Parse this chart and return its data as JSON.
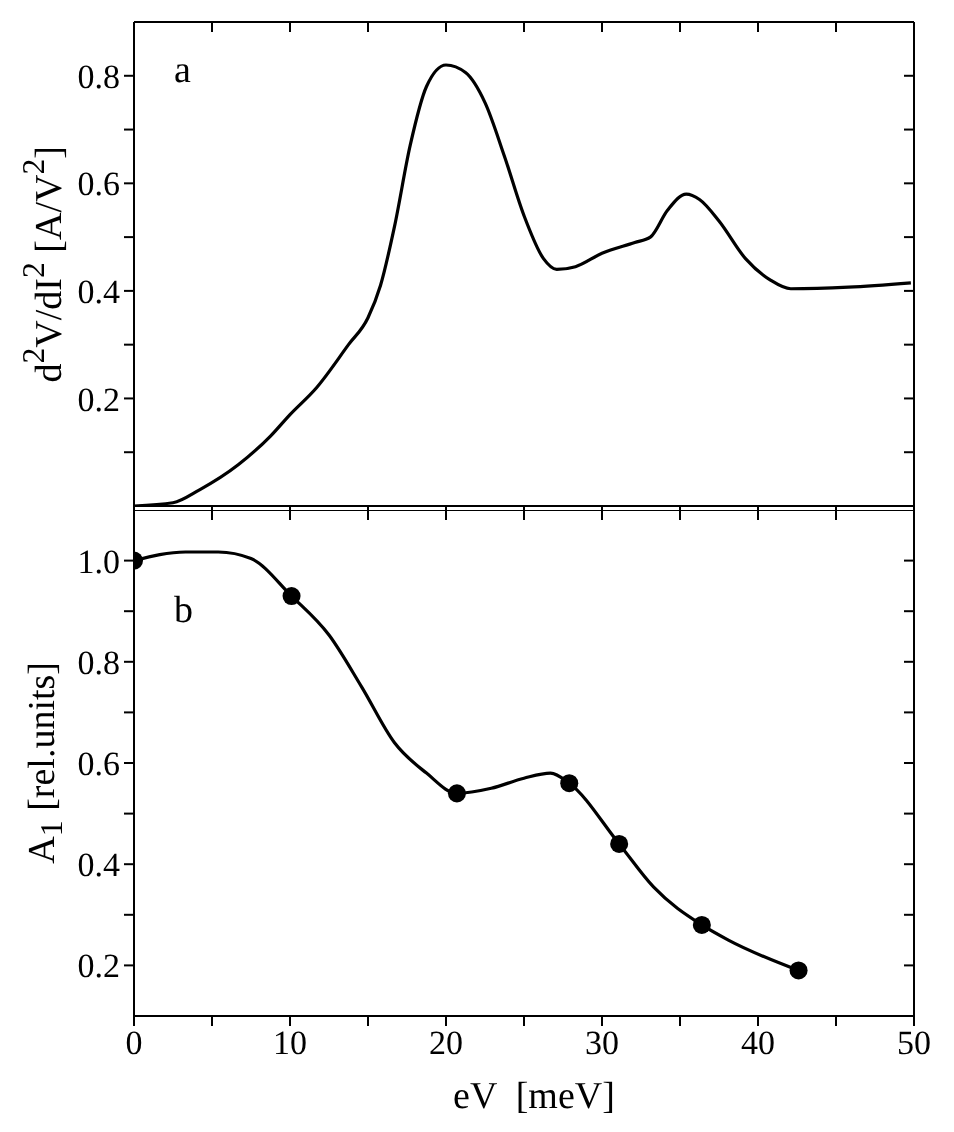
{
  "chart_data": [
    {
      "type": "line",
      "xlim": [
        0,
        50
      ],
      "xticks": [
        0,
        {
          "value": 5,
          "label": null
        },
        10,
        {
          "value": 15,
          "label": null
        },
        20,
        {
          "value": 25,
          "label": null
        },
        30,
        {
          "value": 35,
          "label": null
        },
        40,
        {
          "value": 45,
          "label": null
        },
        50
      ],
      "ylim": [
        0,
        0.9
      ],
      "yticks": [
        {
          "value": 0.1,
          "label": null
        },
        0.2,
        {
          "value": 0.3,
          "label": null
        },
        0.4,
        {
          "value": 0.5,
          "label": null
        },
        0.6,
        {
          "value": 0.7,
          "label": null
        },
        0.8
      ],
      "ylabel": "d$^{2}$V/dI$^{2}$ [A/V$^{2}$]",
      "tick_labels": "y",
      "annotations": [
        "a"
      ],
      "marker": "none",
      "line_style": "solid",
      "series": [
        {
          "color": "#000000",
          "x": [
            0,
            2.5,
            4.2,
            6.7,
            8.75,
            10,
            11.7,
            13.75,
            15,
            15.8,
            16.7,
            17.7,
            18.75,
            20,
            21.25,
            22.5,
            23.75,
            25,
            26.25,
            27.1,
            28.3,
            30,
            32.1,
            33.1,
            34.2,
            35.4,
            36.25,
            37.5,
            39.2,
            40.8,
            42.1,
            45.8,
            49.8
          ],
          "values": [
            0,
            0.006,
            0.03,
            0.077,
            0.13,
            0.17,
            0.22,
            0.3,
            0.35,
            0.41,
            0.52,
            0.67,
            0.78,
            0.82,
            0.806,
            0.75,
            0.65,
            0.54,
            0.46,
            0.44,
            0.445,
            0.47,
            0.49,
            0.5,
            0.55,
            0.58,
            0.57,
            0.53,
            0.46,
            0.42,
            0.404,
            0.407,
            0.415
          ]
        }
      ]
    },
    {
      "type": "line",
      "xlim": [
        0,
        50
      ],
      "xticks": [
        0,
        {
          "value": 5,
          "label": null
        },
        10,
        {
          "value": 15,
          "label": null
        },
        20,
        {
          "value": 25,
          "label": null
        },
        30,
        {
          "value": 35,
          "label": null
        },
        40,
        {
          "value": 45,
          "label": null
        },
        50
      ],
      "ylim": [
        0.1,
        1.1
      ],
      "yticks": [
        0.2,
        {
          "value": 0.3,
          "label": null
        },
        0.4,
        {
          "value": 0.5,
          "label": null
        },
        0.6,
        {
          "value": 0.7,
          "label": null
        },
        0.8,
        {
          "value": 0.9,
          "label": null
        },
        {
          "value": 1.0,
          "label": "1.0"
        }
      ],
      "xlabel": "eV  [meV]",
      "ylabel": "A$_{1}$ [rel.units]",
      "annotations": [
        "b"
      ],
      "line_style": "solid",
      "series": [
        {
          "marker": "none",
          "color": "#000000",
          "x": [
            0,
            3.3,
            5.4,
            7.5,
            10.1,
            12.5,
            14.6,
            16.7,
            18.75,
            20.7,
            22.9,
            25,
            26.7,
            27.9,
            31.1,
            33.3,
            36.4,
            38.1,
            42.6
          ],
          "values": [
            1.0,
            1.017,
            1.017,
            1.004,
            0.93,
            0.853,
            0.75,
            0.64,
            0.58,
            0.54,
            0.55,
            0.57,
            0.58,
            0.56,
            0.44,
            0.355,
            0.28,
            0.25,
            0.19
          ]
        },
        {
          "type": "scatter",
          "marker": "circle",
          "color": "#000000",
          "x": [
            0,
            10.1,
            20.7,
            27.9,
            31.1,
            36.4,
            42.6
          ],
          "values": [
            1.0,
            0.93,
            0.54,
            0.56,
            0.44,
            0.28,
            0.19
          ]
        }
      ]
    }
  ]
}
